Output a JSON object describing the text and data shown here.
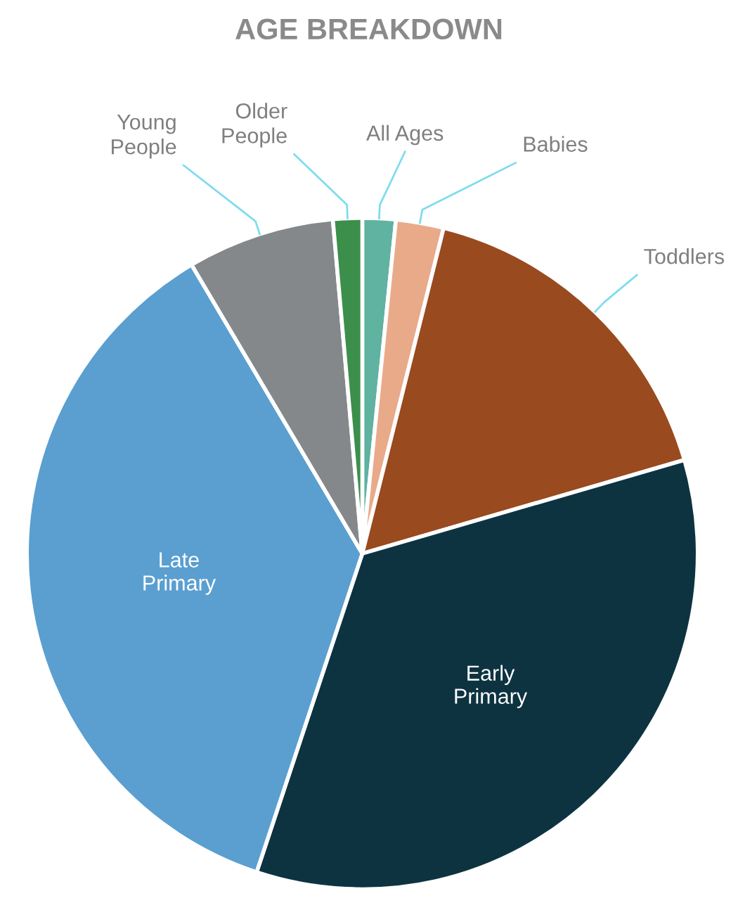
{
  "chart_data": {
    "type": "pie",
    "title": "AGE BREAKDOWN",
    "categories": [
      "All Ages",
      "Babies",
      "Toddlers",
      "Early Primary",
      "Late Primary",
      "Young People",
      "Older People"
    ],
    "values": [
      1.6,
      2.3,
      16.6,
      34.6,
      36.4,
      7.1,
      1.4
    ],
    "colors": [
      "#5fb3a0",
      "#e9aa8a",
      "#994a1e",
      "#0d3341",
      "#5a9fd0",
      "#85888b",
      "#3b8f4b"
    ],
    "legend": false
  }
}
